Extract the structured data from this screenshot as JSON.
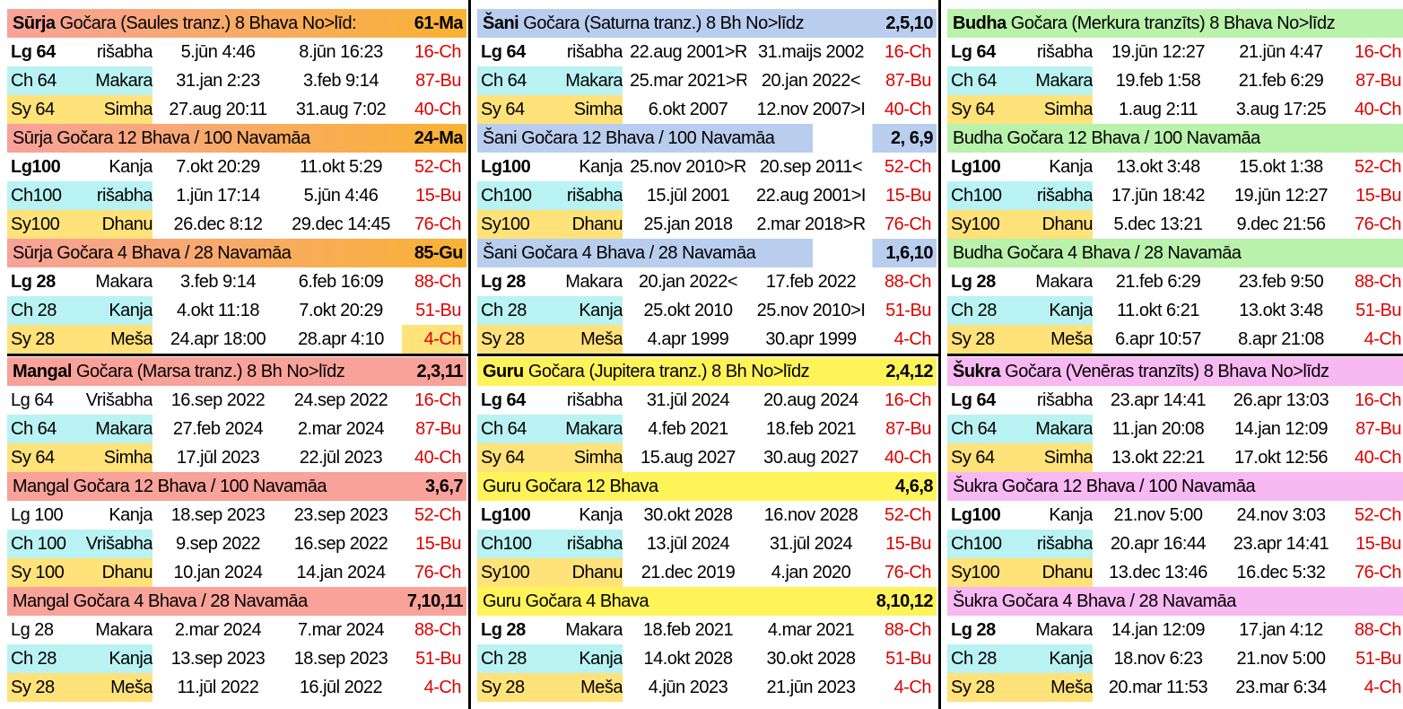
{
  "colors": {
    "orange": "#f9b233",
    "salmon": "#f8a29a",
    "cyan": "#b9f2f2",
    "yellow": "#ffe27a",
    "blue": "#b9cdee",
    "green": "#b9f2aa",
    "brightYellow": "#fff35a",
    "pink": "#f8b8f2"
  },
  "blocks": [
    {
      "rows": [
        {
          "type": "hdr",
          "bold": "Sūrja",
          "text": " Gočara (Saules tranz.) 8 Bhava No>līd:",
          "code": "61-Ma",
          "bg": "salmon",
          "bg2": "orange"
        },
        {
          "type": "data",
          "lab": "Lg 64",
          "sign": "rišabha",
          "d1": "5.jūn 4:46",
          "d2": "8.jūn 16:23",
          "code": "16-Ch",
          "labBold": true
        },
        {
          "type": "data",
          "lab": "Ch 64",
          "sign": "Makara",
          "d1": "31.jan 2:23",
          "d2": "3.feb 9:14",
          "code": "87-Bu",
          "hl": "cyan"
        },
        {
          "type": "data",
          "lab": "Sy 64",
          "sign": "Simha",
          "d1": "27.aug 20:11",
          "d2": "31.aug 7:02",
          "code": "40-Ch",
          "hl": "yellow"
        },
        {
          "type": "hdr",
          "bold": "",
          "text": "Sūrja Gočara 12 Bhava  / 100 Navamāa",
          "code": "24-Ma",
          "bg": "salmon",
          "bg2": "orange"
        },
        {
          "type": "data",
          "lab": "Lg100",
          "sign": "Kanja",
          "d1": "7.okt 20:29",
          "d2": "11.okt 5:29",
          "code": "52-Ch",
          "labBold": true
        },
        {
          "type": "data",
          "lab": "Ch100",
          "sign": "rišabha",
          "d1": "1.jūn 17:14",
          "d2": "5.jūn 4:46",
          "code": "15-Bu",
          "hl": "cyan"
        },
        {
          "type": "data",
          "lab": "Sy100",
          "sign": "Dhanu",
          "d1": "26.dec 8:12",
          "d2": "29.dec 14:45",
          "code": "76-Ch",
          "hl": "yellow"
        },
        {
          "type": "hdr",
          "bold": "",
          "text": "Sūrja Gočara 4 Bhava / 28 Navamāa",
          "code": "85-Gu",
          "bg": "salmon",
          "bg2": "orange"
        },
        {
          "type": "data",
          "lab": "Lg 28",
          "sign": "Makara",
          "d1": "3.feb 9:14",
          "d2": "6.feb 16:09",
          "code": "88-Ch",
          "labBold": true
        },
        {
          "type": "data",
          "lab": "Ch 28",
          "sign": "Kanja",
          "d1": "4.okt 11:18",
          "d2": "7.okt 20:29",
          "code": "51-Bu",
          "hl": "cyan"
        },
        {
          "type": "data",
          "lab": "Sy 28",
          "sign": "Meša",
          "d1": "24.apr 18:00",
          "d2": "28.apr 4:10",
          "code": "4-Ch",
          "hl": "yellow",
          "codeHl": "yellow"
        }
      ]
    },
    {
      "rows": [
        {
          "type": "hdr",
          "bold": "Šani",
          "text": " Gočara (Saturna tranz.) 8 Bh No>līdz",
          "code": "2,5,10",
          "bg": "blue"
        },
        {
          "type": "data",
          "lab": "Lg 64",
          "sign": "rišabha",
          "d1": "22.aug 2001>R",
          "d2": "31.maijs 2002",
          "code": "16-Ch",
          "labBold": true
        },
        {
          "type": "data",
          "lab": "Ch 64",
          "sign": "Makara",
          "d1": "25.mar 2021>R",
          "d2": "20.jan 2022<",
          "code": "87-Bu",
          "hl": "cyan"
        },
        {
          "type": "data",
          "lab": "Sy 64",
          "sign": "Simha",
          "d1": "6.okt 2007",
          "d2": "12.nov 2007>I",
          "code": "40-Ch",
          "hl": "yellow"
        },
        {
          "type": "hdr",
          "bold": "",
          "text": "Šani Gočara 12 Bhava / 100 Navamāa",
          "code": "2, 6,9",
          "bg": "blue",
          "split": true
        },
        {
          "type": "data",
          "lab": "Lg100",
          "sign": "Kanja",
          "d1": "25.nov 2010>R",
          "d2": "20.sep 2011<",
          "code": "52-Ch",
          "labBold": true
        },
        {
          "type": "data",
          "lab": "Ch100",
          "sign": "rišabha",
          "d1": "15.jūl 2001",
          "d2": "22.aug 2001>I",
          "code": "15-Bu",
          "hl": "cyan"
        },
        {
          "type": "data",
          "lab": "Sy100",
          "sign": "Dhanu",
          "d1": "25.jan 2018",
          "d2": "2.mar 2018>R",
          "code": "76-Ch",
          "hl": "yellow"
        },
        {
          "type": "hdr",
          "bold": "",
          "text": "Šani Gočara 4 Bhava / 28 Navamāa",
          "code": "1,6,10",
          "bg": "blue",
          "split": true
        },
        {
          "type": "data",
          "lab": "Lg 28",
          "sign": "Makara",
          "d1": "20.jan 2022<",
          "d2": "17.feb 2022",
          "code": "88-Ch",
          "labBold": true
        },
        {
          "type": "data",
          "lab": "Ch 28",
          "sign": "Kanja",
          "d1": "25.okt 2010",
          "d2": "25.nov 2010>I",
          "code": "51-Bu",
          "hl": "cyan"
        },
        {
          "type": "data",
          "lab": "Sy 28",
          "sign": "Meša",
          "d1": "4.apr 1999",
          "d2": "30.apr 1999",
          "code": "4-Ch",
          "hl": "yellow"
        }
      ]
    },
    {
      "rows": [
        {
          "type": "hdr",
          "bold": "Budha",
          "text": " Gočara (Merkura tranzīts) 8 Bhava No>līdz",
          "code": "",
          "bg": "green"
        },
        {
          "type": "data",
          "lab": "Lg 64",
          "sign": "rišabha",
          "d1": "19.jūn 12:27",
          "d2": "21.jūn 4:47",
          "code": "16-Ch",
          "labBold": true
        },
        {
          "type": "data",
          "lab": "Ch 64",
          "sign": "Makara",
          "d1": "19.feb 1:58",
          "d2": "21.feb 6:29",
          "code": "87-Bu",
          "hl": "cyan"
        },
        {
          "type": "data",
          "lab": "Sy 64",
          "sign": "Simha",
          "d1": "1.aug 2:11",
          "d2": "3.aug 17:25",
          "code": "40-Ch",
          "hl": "yellow"
        },
        {
          "type": "hdr",
          "bold": "",
          "text": "Budha Gočara 12 Bhava / 100 Navamāa",
          "code": "",
          "bg": "green"
        },
        {
          "type": "data",
          "lab": "Lg100",
          "sign": "Kanja",
          "d1": "13.okt 3:48",
          "d2": "15.okt 1:38",
          "code": "52-Ch",
          "labBold": true
        },
        {
          "type": "data",
          "lab": "Ch100",
          "sign": "rišabha",
          "d1": "17.jūn 18:42",
          "d2": "19.jūn 12:27",
          "code": "15-Bu",
          "hl": "cyan"
        },
        {
          "type": "data",
          "lab": "Sy100",
          "sign": "Dhanu",
          "d1": "5.dec 13:21",
          "d2": "9.dec 21:56",
          "code": "76-Ch",
          "hl": "yellow"
        },
        {
          "type": "hdr",
          "bold": "",
          "text": "Budha Gočara 4 Bhava / 28 Navamāa",
          "code": "",
          "bg": "green"
        },
        {
          "type": "data",
          "lab": "Lg 28",
          "sign": "Makara",
          "d1": "21.feb 6:29",
          "d2": "23.feb 9:50",
          "code": "88-Ch",
          "labBold": true
        },
        {
          "type": "data",
          "lab": "Ch 28",
          "sign": "Kanja",
          "d1": "11.okt 6:21",
          "d2": "13.okt 3:48",
          "code": "51-Bu",
          "hl": "cyan"
        },
        {
          "type": "data",
          "lab": "Sy 28",
          "sign": "Meša",
          "d1": "6.apr 10:57",
          "d2": "8.apr 21:08",
          "code": "4-Ch",
          "hl": "yellow"
        }
      ]
    },
    {
      "rows": [
        {
          "type": "hdr",
          "bold": "Mangal",
          "text": " Gočara (Marsa tranz.) 8 Bh No>līdz",
          "code": "2,3,11",
          "bg": "salmon"
        },
        {
          "type": "data",
          "lab": "Lg 64",
          "sign": "Vrišabha",
          "d1": "16.sep  2022",
          "d2": "24.sep 2022",
          "code": "16-Ch"
        },
        {
          "type": "data",
          "lab": "Ch 64",
          "sign": "Makara",
          "d1": "27.feb  2024",
          "d2": "2.mar  2024",
          "code": "87-Bu",
          "hl": "cyan"
        },
        {
          "type": "data",
          "lab": "Sy 64",
          "sign": "Simha",
          "d1": "17.jūl  2023",
          "d2": "22.jūl 2023",
          "code": "40-Ch",
          "hl": "yellow"
        },
        {
          "type": "hdr",
          "bold": "",
          "text": "Mangal Gočara 12 Bhava / 100 Navamāa",
          "code": "3,6,7",
          "bg": "salmon"
        },
        {
          "type": "data",
          "lab": "Lg 100",
          "sign": "Kanja",
          "d1": "18.sep  2023",
          "d2": "23.sep 2023",
          "code": "52-Ch"
        },
        {
          "type": "data",
          "lab": "Ch 100",
          "sign": "Vrišabha",
          "d1": "9.sep  2022",
          "d2": "16.sep 2022",
          "code": "15-Bu",
          "hl": "cyan"
        },
        {
          "type": "data",
          "lab": "Sy 100",
          "sign": "Dhanu",
          "d1": "10.jan  2024",
          "d2": "14.jan 2024",
          "code": "76-Ch",
          "hl": "yellow"
        },
        {
          "type": "hdr",
          "bold": "",
          "text": "Mangal Gočara 4 Bhava / 28 Navamāa",
          "code": "7,10,11",
          "bg": "salmon"
        },
        {
          "type": "data",
          "lab": "Lg 28",
          "sign": "Makara",
          "d1": "2.mar  2024",
          "d2": "7.mar 2024",
          "code": "88-Ch"
        },
        {
          "type": "data",
          "lab": "Ch 28",
          "sign": "Kanja",
          "d1": "13.sep  2023",
          "d2": "18.sep 2023",
          "code": "51-Bu",
          "hl": "cyan"
        },
        {
          "type": "data",
          "lab": "Sy 28",
          "sign": "Meša",
          "d1": "11.jūl  2022",
          "d2": "16.jūl 2022",
          "code": "4-Ch",
          "hl": "yellow"
        }
      ]
    },
    {
      "rows": [
        {
          "type": "hdr",
          "bold": "Guru",
          "text": " Gočara (Jupitera tranz.) 8 Bh No>līdz",
          "code": "2,4,12",
          "bg": "brightYellow"
        },
        {
          "type": "data",
          "lab": "Lg 64",
          "sign": "rišabha",
          "d1": "31.jūl 2024",
          "d2": "20.aug 2024",
          "code": "16-Ch",
          "labBold": true
        },
        {
          "type": "data",
          "lab": "Ch 64",
          "sign": "Makara",
          "d1": "4.feb 2021",
          "d2": "18.feb 2021",
          "code": "87-Bu",
          "hl": "cyan"
        },
        {
          "type": "data",
          "lab": "Sy 64",
          "sign": "Simha",
          "d1": "15.aug 2027",
          "d2": "30.aug 2027",
          "code": "40-Ch",
          "hl": "yellow"
        },
        {
          "type": "hdr",
          "bold": "",
          "text": "Guru Gočara 12 Bhava",
          "code": "4,6,8",
          "bg": "brightYellow"
        },
        {
          "type": "data",
          "lab": "Lg100",
          "sign": "Kanja",
          "d1": "30.okt 2028",
          "d2": "16.nov 2028",
          "code": "52-Ch",
          "labBold": true
        },
        {
          "type": "data",
          "lab": "Ch100",
          "sign": "rišabha",
          "d1": "13.jūl 2024",
          "d2": "31.jūl 2024",
          "code": "15-Bu",
          "hl": "cyan"
        },
        {
          "type": "data",
          "lab": "Sy100",
          "sign": "Dhanu",
          "d1": "21.dec 2019",
          "d2": "4.jan 2020",
          "code": "76-Ch",
          "hl": "yellow"
        },
        {
          "type": "hdr",
          "bold": "",
          "text": "Guru Gočara 4 Bhava",
          "code": "8,10,12",
          "bg": "brightYellow"
        },
        {
          "type": "data",
          "lab": "Lg 28",
          "sign": "Makara",
          "d1": "18.feb 2021",
          "d2": "4.mar 2021",
          "code": "88-Ch",
          "labBold": true
        },
        {
          "type": "data",
          "lab": "Ch 28",
          "sign": "Kanja",
          "d1": "14.okt 2028",
          "d2": "30.okt 2028",
          "code": "51-Bu",
          "hl": "cyan"
        },
        {
          "type": "data",
          "lab": "Sy 28",
          "sign": "Meša",
          "d1": "4.jūn 2023",
          "d2": "21.jūn 2023",
          "code": "4-Ch",
          "hl": "yellow"
        }
      ]
    },
    {
      "rows": [
        {
          "type": "hdr",
          "bold": "Šukra",
          "text": " Gočara (Venēras tranzīts) 8 Bhava No>līdz",
          "code": "",
          "bg": "pink"
        },
        {
          "type": "data",
          "lab": "Lg 64",
          "sign": "rišabha",
          "d1": "23.apr 14:41",
          "d2": "26.apr 13:03",
          "code": "16-Ch",
          "labBold": true
        },
        {
          "type": "data",
          "lab": "Ch 64",
          "sign": "Makara",
          "d1": "11.jan 20:08",
          "d2": "14.jan 12:09",
          "code": "87-Bu",
          "hl": "cyan"
        },
        {
          "type": "data",
          "lab": "Sy 64",
          "sign": "Simha",
          "d1": "13.okt 22:21",
          "d2": "17.okt 12:56",
          "code": "40-Ch",
          "hl": "yellow"
        },
        {
          "type": "hdr",
          "bold": "",
          "text": "Šukra Gočara 12 Bhava / 100 Navamāa",
          "code": "",
          "bg": "pink"
        },
        {
          "type": "data",
          "lab": "Lg100",
          "sign": "Kanja",
          "d1": "21.nov 5:00",
          "d2": "24.nov 3:03",
          "code": "52-Ch",
          "labBold": true
        },
        {
          "type": "data",
          "lab": "Ch100",
          "sign": "rišabha",
          "d1": "20.apr 16:44",
          "d2": "23.apr 14:41",
          "code": "15-Bu",
          "hl": "cyan"
        },
        {
          "type": "data",
          "lab": "Sy100",
          "sign": "Dhanu",
          "d1": "13.dec 13:46",
          "d2": "16.dec 5:32",
          "code": "76-Ch",
          "hl": "yellow"
        },
        {
          "type": "hdr",
          "bold": "",
          "text": "Šukra Gočara 4 Bhava / 28 Navamāa",
          "code": "",
          "bg": "pink"
        },
        {
          "type": "data",
          "lab": "Lg 28",
          "sign": "Makara",
          "d1": "14.jan 12:09",
          "d2": "17.jan 4:12",
          "code": "88-Ch",
          "labBold": true
        },
        {
          "type": "data",
          "lab": "Ch 28",
          "sign": "Kanja",
          "d1": "18.nov 6:23",
          "d2": "21.nov 5:00",
          "code": "51-Bu",
          "hl": "cyan"
        },
        {
          "type": "data",
          "lab": "Sy 28",
          "sign": "Meša",
          "d1": "20.mar 11:53",
          "d2": "23.mar 6:34",
          "code": "4-Ch",
          "hl": "yellow"
        }
      ]
    }
  ]
}
